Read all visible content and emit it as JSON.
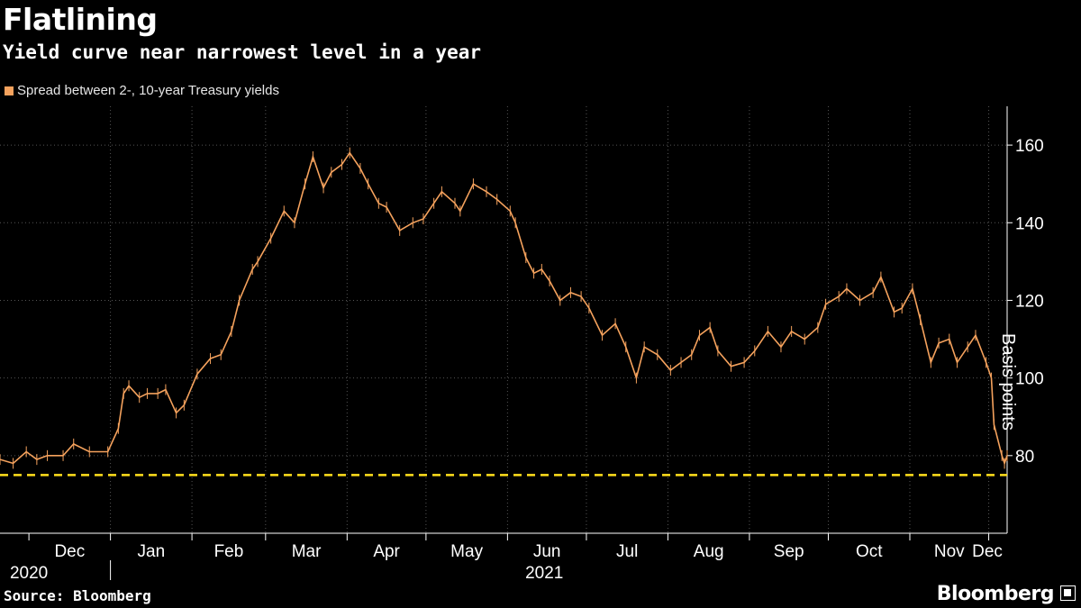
{
  "colors": {
    "series": "#f5a25d",
    "reference": "#ffe01b",
    "background": "#000000",
    "grid": "#555555"
  },
  "brand": {
    "name": "Bloomberg",
    "icon": "bloomberg-square-icon"
  },
  "source": "Source: Bloomberg",
  "chart_data": {
    "type": "line",
    "title": "Flatlining",
    "subtitle": "Yield curve near narrowest level in a year",
    "ylabel": "Basis points",
    "xlabel": "",
    "ylim": [
      60,
      170
    ],
    "yticks": [
      80,
      100,
      120,
      140,
      160
    ],
    "xlim": [
      "2020-11-20",
      "2021-12-08"
    ],
    "months": [
      "Dec",
      "Jan",
      "Feb",
      "Mar",
      "Apr",
      "May",
      "Jun",
      "Jul",
      "Aug",
      "Sep",
      "Oct",
      "Nov",
      "Dec"
    ],
    "month_dates": [
      "2020-12-01",
      "2021-01-01",
      "2021-02-01",
      "2021-03-01",
      "2021-04-01",
      "2021-05-01",
      "2021-06-01",
      "2021-07-01",
      "2021-08-01",
      "2021-09-01",
      "2021-10-01",
      "2021-11-01",
      "2021-12-01"
    ],
    "years": [
      {
        "label": "2020",
        "date": "2020-12-01"
      },
      {
        "label": "2021",
        "date": "2021-06-15"
      }
    ],
    "reference_line": 75,
    "legend": [
      {
        "name": "Spread between 2-, 10-year Treasury yields"
      }
    ],
    "series": [
      {
        "name": "Spread between 2-, 10-year Treasury yields",
        "points": [
          [
            "2020-11-20",
            79
          ],
          [
            "2020-11-25",
            78
          ],
          [
            "2020-11-30",
            81
          ],
          [
            "2020-12-04",
            79
          ],
          [
            "2020-12-08",
            80
          ],
          [
            "2020-12-14",
            80
          ],
          [
            "2020-12-18",
            83
          ],
          [
            "2020-12-24",
            81
          ],
          [
            "2020-12-31",
            81
          ],
          [
            "2021-01-04",
            87
          ],
          [
            "2021-01-06",
            96
          ],
          [
            "2021-01-08",
            98
          ],
          [
            "2021-01-12",
            95
          ],
          [
            "2021-01-15",
            96
          ],
          [
            "2021-01-19",
            96
          ],
          [
            "2021-01-22",
            97
          ],
          [
            "2021-01-26",
            91
          ],
          [
            "2021-01-29",
            93
          ],
          [
            "2021-02-03",
            101
          ],
          [
            "2021-02-08",
            105
          ],
          [
            "2021-02-12",
            106
          ],
          [
            "2021-02-16",
            112
          ],
          [
            "2021-02-19",
            120
          ],
          [
            "2021-02-24",
            128
          ],
          [
            "2021-02-26",
            130
          ],
          [
            "2021-03-03",
            136
          ],
          [
            "2021-03-08",
            143
          ],
          [
            "2021-03-12",
            140
          ],
          [
            "2021-03-16",
            150
          ],
          [
            "2021-03-19",
            157
          ],
          [
            "2021-03-23",
            149
          ],
          [
            "2021-03-26",
            153
          ],
          [
            "2021-03-30",
            155
          ],
          [
            "2021-04-02",
            158
          ],
          [
            "2021-04-06",
            154
          ],
          [
            "2021-04-09",
            150
          ],
          [
            "2021-04-13",
            145
          ],
          [
            "2021-04-16",
            144
          ],
          [
            "2021-04-21",
            138
          ],
          [
            "2021-04-26",
            140
          ],
          [
            "2021-04-30",
            141
          ],
          [
            "2021-05-04",
            145
          ],
          [
            "2021-05-07",
            148
          ],
          [
            "2021-05-12",
            145
          ],
          [
            "2021-05-14",
            143
          ],
          [
            "2021-05-19",
            150
          ],
          [
            "2021-05-24",
            148
          ],
          [
            "2021-05-28",
            146
          ],
          [
            "2021-06-02",
            143
          ],
          [
            "2021-06-04",
            140
          ],
          [
            "2021-06-08",
            131
          ],
          [
            "2021-06-11",
            127
          ],
          [
            "2021-06-14",
            128
          ],
          [
            "2021-06-17",
            125
          ],
          [
            "2021-06-21",
            120
          ],
          [
            "2021-06-25",
            122
          ],
          [
            "2021-06-29",
            121
          ],
          [
            "2021-07-02",
            118
          ],
          [
            "2021-07-07",
            111
          ],
          [
            "2021-07-12",
            114
          ],
          [
            "2021-07-16",
            108
          ],
          [
            "2021-07-20",
            100
          ],
          [
            "2021-07-23",
            108
          ],
          [
            "2021-07-28",
            106
          ],
          [
            "2021-08-02",
            102
          ],
          [
            "2021-08-06",
            104
          ],
          [
            "2021-08-10",
            106
          ],
          [
            "2021-08-13",
            111
          ],
          [
            "2021-08-17",
            113
          ],
          [
            "2021-08-20",
            107
          ],
          [
            "2021-08-25",
            103
          ],
          [
            "2021-08-30",
            104
          ],
          [
            "2021-09-03",
            107
          ],
          [
            "2021-09-08",
            112
          ],
          [
            "2021-09-13",
            108
          ],
          [
            "2021-09-17",
            112
          ],
          [
            "2021-09-22",
            110
          ],
          [
            "2021-09-27",
            113
          ],
          [
            "2021-09-30",
            119
          ],
          [
            "2021-10-05",
            121
          ],
          [
            "2021-10-08",
            123
          ],
          [
            "2021-10-13",
            120
          ],
          [
            "2021-10-18",
            122
          ],
          [
            "2021-10-21",
            126
          ],
          [
            "2021-10-26",
            117
          ],
          [
            "2021-10-29",
            118
          ],
          [
            "2021-11-02",
            123
          ],
          [
            "2021-11-05",
            115
          ],
          [
            "2021-11-09",
            104
          ],
          [
            "2021-11-12",
            109
          ],
          [
            "2021-11-16",
            110
          ],
          [
            "2021-11-19",
            104
          ],
          [
            "2021-11-23",
            108
          ],
          [
            "2021-11-26",
            111
          ],
          [
            "2021-11-30",
            104
          ],
          [
            "2021-12-02",
            100
          ],
          [
            "2021-12-03",
            88
          ],
          [
            "2021-12-06",
            80
          ],
          [
            "2021-12-07",
            78
          ],
          [
            "2021-12-08",
            80
          ]
        ]
      }
    ]
  }
}
